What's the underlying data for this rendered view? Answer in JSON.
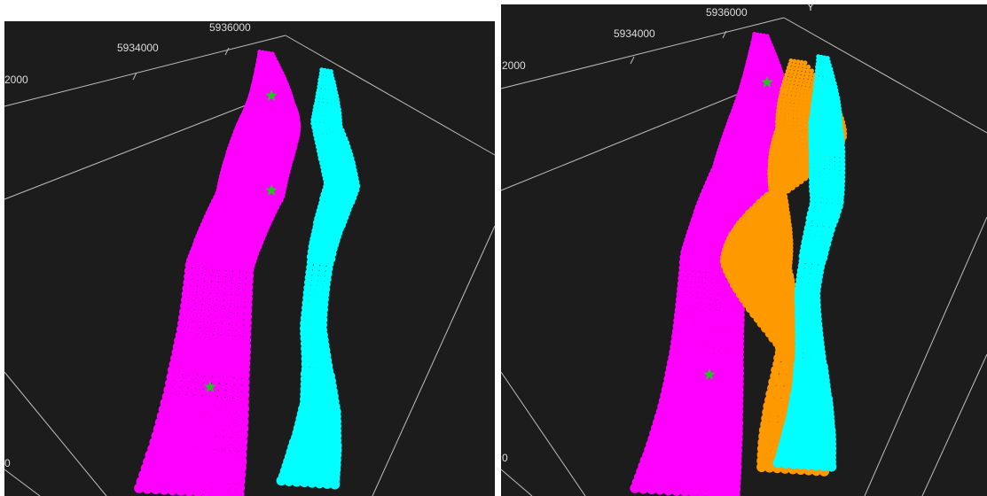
{
  "panels": [
    {
      "labels": {
        "y_far": "5936000",
        "y_mid": "5934000",
        "y_near": "2000",
        "z": "0"
      }
    },
    {
      "labels": {
        "y_far": "5936000",
        "y_mid": "5934000",
        "y_near": "2000",
        "axis": "Y",
        "z": "0"
      }
    }
  ]
}
